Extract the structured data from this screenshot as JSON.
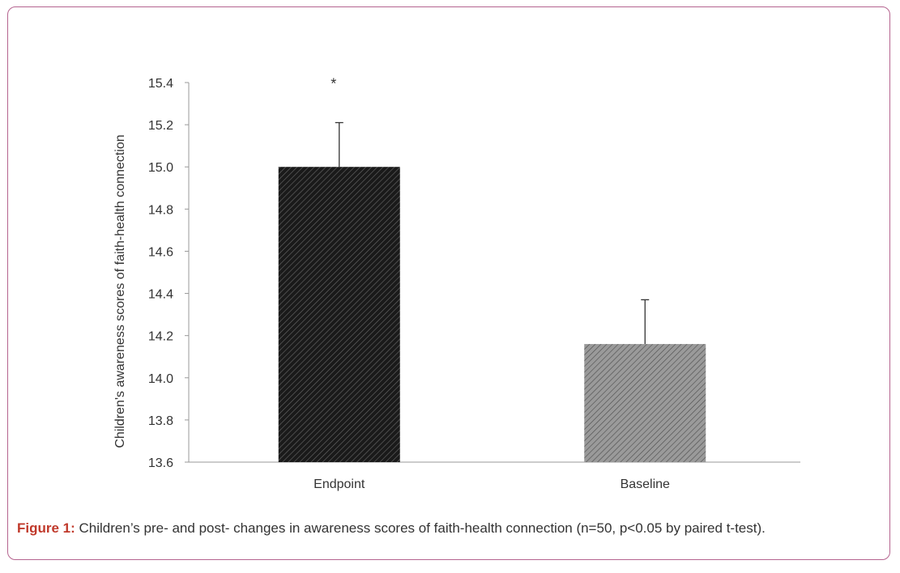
{
  "chart_data": {
    "type": "bar",
    "categories": [
      "Endpoint",
      "Baseline"
    ],
    "values": [
      15.0,
      14.16
    ],
    "error_plus": [
      0.21,
      0.21
    ],
    "ylabel": "Children's awareness scores of faith-health connection",
    "xlabel": "",
    "ylim": [
      13.6,
      15.4
    ],
    "yticks": [
      "13.6",
      "13.8",
      "14.0",
      "14.2",
      "14.4",
      "14.6",
      "14.8",
      "15.0",
      "15.2",
      "15.4"
    ],
    "annotations": [
      {
        "category": "Endpoint",
        "text": "*"
      }
    ],
    "bar_colors": [
      "#1a1a1a",
      "#8a8a8a"
    ],
    "grid": false,
    "legend": "none"
  },
  "caption": {
    "label": "Figure 1:",
    "text": " Children’s pre- and post- changes in awareness scores of faith-health connection (n=50, p<0.05 by paired t-test)."
  }
}
